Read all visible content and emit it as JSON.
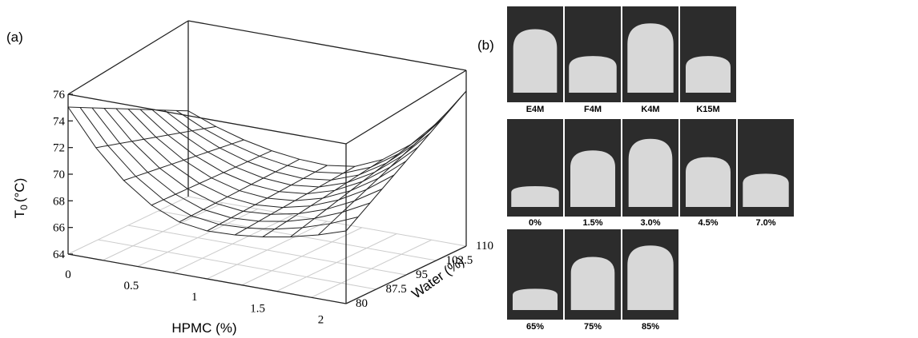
{
  "panel_a": {
    "label": "(a)",
    "z_axis": {
      "symbol": "T",
      "subscript": "0",
      "unit": "(°C)"
    },
    "z_ticks": [
      "64",
      "66",
      "68",
      "70",
      "72",
      "74",
      "76"
    ],
    "x_axis_label": "HPMC (%)",
    "x_ticks": [
      "0",
      "0.5",
      "1",
      "1.5",
      "2"
    ],
    "y_axis_label": "Water (%)",
    "y_ticks": [
      "80",
      "87.5",
      "95",
      "102.5",
      "110"
    ]
  },
  "panel_b": {
    "label": "(b)",
    "rows": [
      [
        "E4M",
        "F4M",
        "K4M",
        "K15M"
      ],
      [
        "0%",
        "1.5%",
        "3.0%",
        "4.5%",
        "7.0%"
      ],
      [
        "65%",
        "75%",
        "85%"
      ]
    ]
  }
}
